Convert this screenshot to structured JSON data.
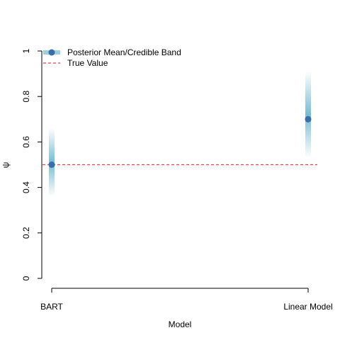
{
  "chart_data": {
    "type": "scatter",
    "xlabel": "Model",
    "ylabel": "ψ",
    "categories": [
      "BART",
      "Linear Model"
    ],
    "ylim": [
      0,
      1
    ],
    "yticks": [
      "0",
      "0.2",
      "0.4",
      "0.6",
      "0.8",
      "1"
    ],
    "yticks_values": [
      0,
      0.2,
      0.4,
      0.6,
      0.8,
      1
    ],
    "series": [
      {
        "name": "Posterior Mean/Credible Band",
        "means": [
          0.5,
          0.7
        ],
        "band_lower": [
          0.36,
          0.53
        ],
        "band_upper": [
          0.66,
          0.91
        ]
      }
    ],
    "reference_line": {
      "name": "True Value",
      "y": 0.5,
      "style": "dashed",
      "color": "#e8404f"
    },
    "legend": {
      "placement": "top-left",
      "entries": [
        "Posterior Mean/Credible Band",
        "True Value"
      ]
    },
    "colors": {
      "point": "#3a6ea8",
      "band": "#1f8fb5",
      "legend_band": "#9ccfe0",
      "true_line": "#e8404f",
      "axis": "#000000"
    },
    "grid": false
  }
}
